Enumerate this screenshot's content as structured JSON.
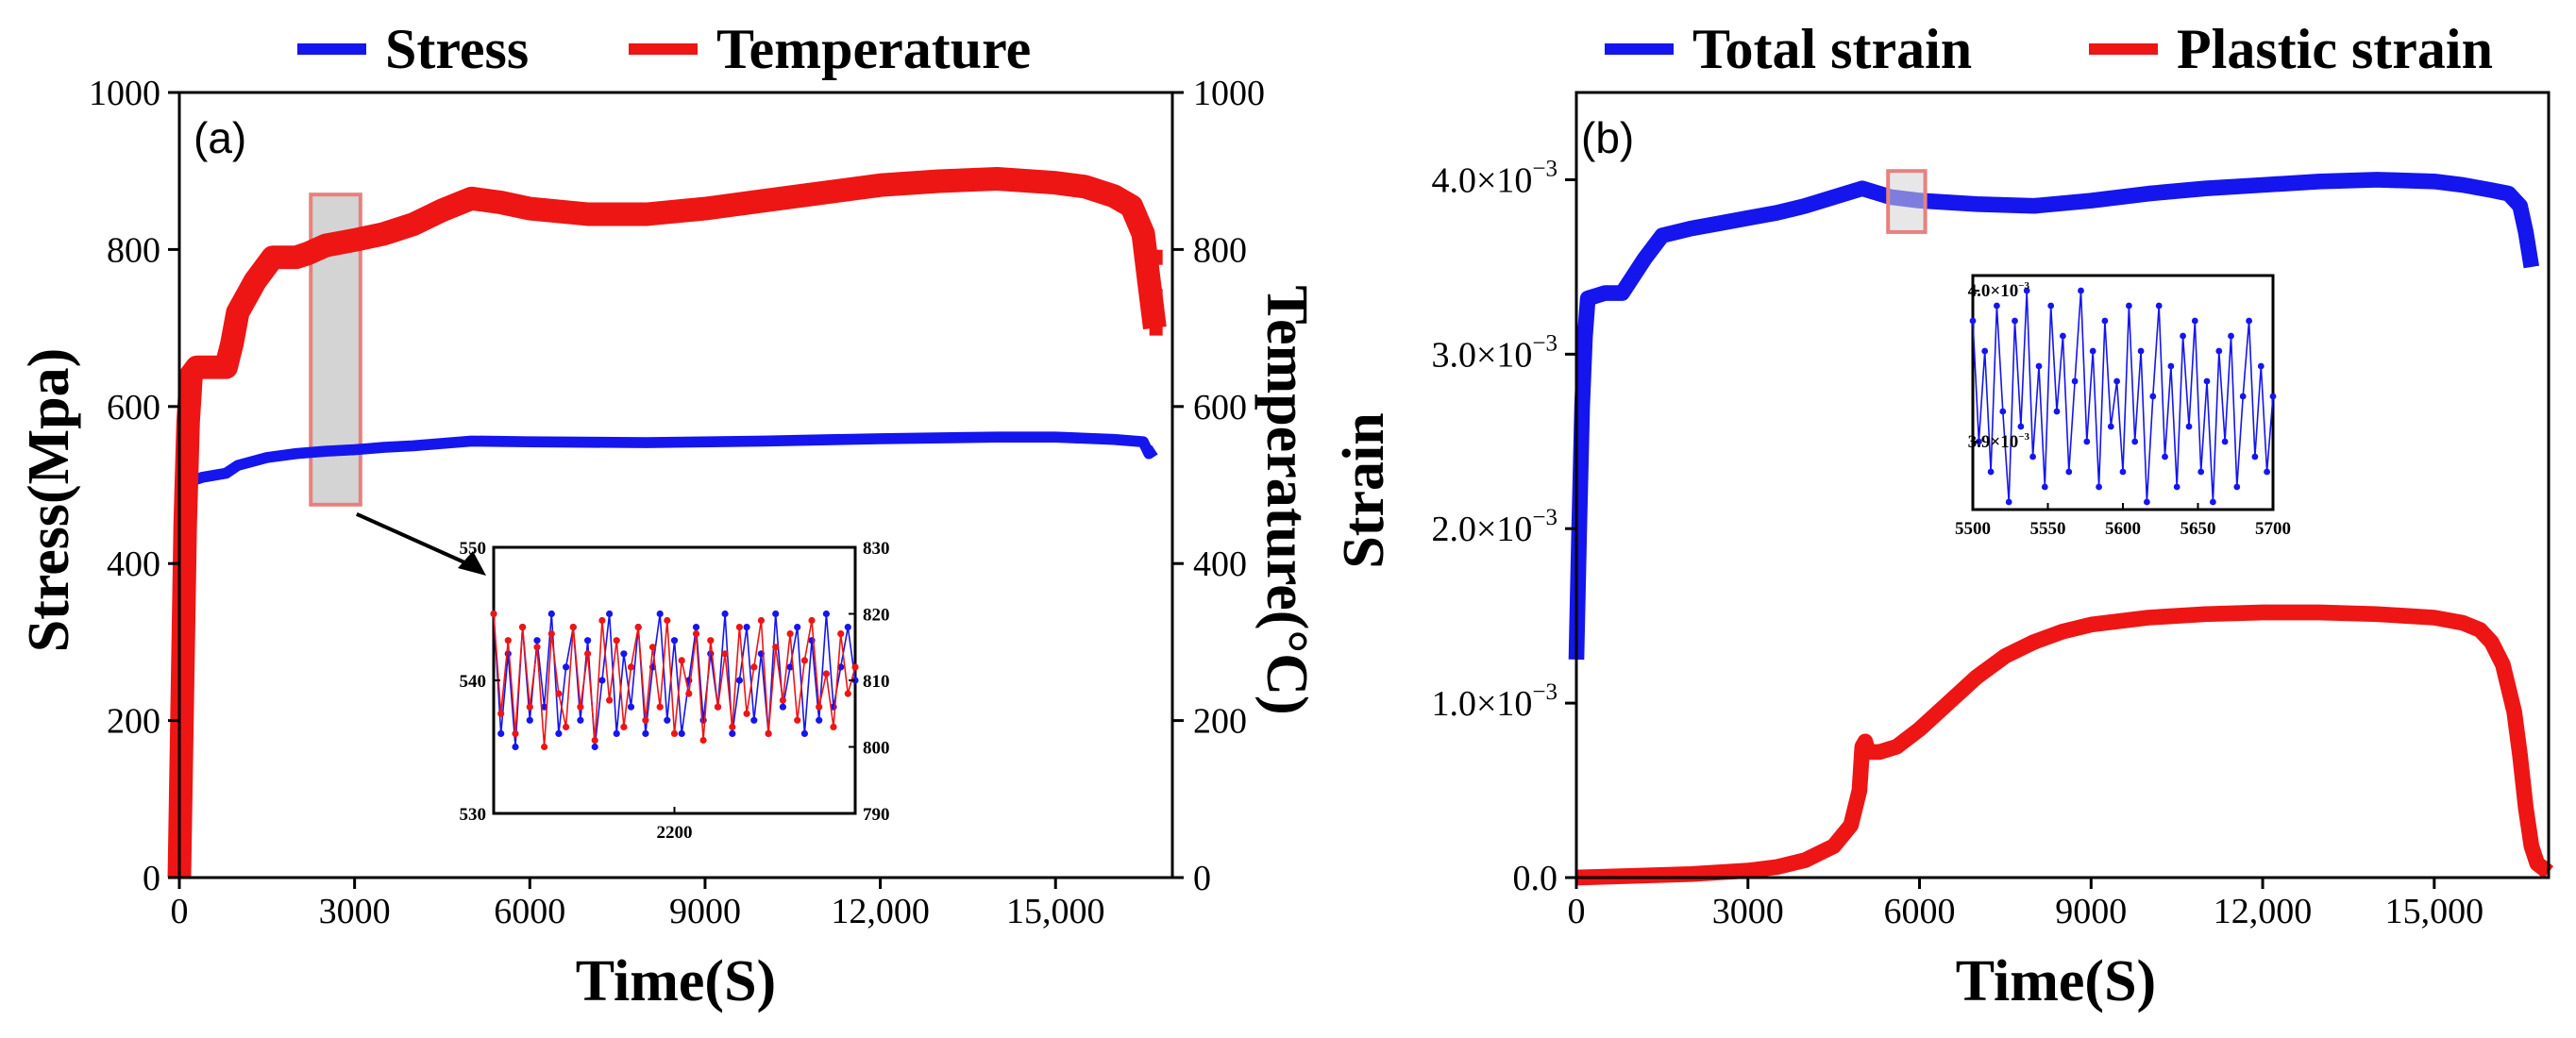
{
  "colors": {
    "stress": "#1515ee",
    "temperature": "#ee1515",
    "total": "#1515ee",
    "plastic": "#ee1515",
    "highlight": "#e88080",
    "highlight_fill": "#d4d4d4",
    "axis": "#000000"
  },
  "chart_data": [
    {
      "id": "a",
      "type": "line",
      "panel_label": "(a)",
      "legend": [
        "Stress",
        "Temperature"
      ],
      "xlabel": "Time(S)",
      "ylabel": "Stress(Mpa)",
      "y2label": "Temperature(°C)",
      "xlim": [
        0,
        17000
      ],
      "ylim": [
        0,
        1000
      ],
      "y2lim": [
        0,
        1000
      ],
      "xticks": [
        0,
        3000,
        6000,
        9000,
        12000,
        15000
      ],
      "xtick_labels": [
        "0",
        "3000",
        "6000",
        "9000",
        "12,000",
        "15,000"
      ],
      "yticks": [
        0,
        200,
        400,
        600,
        800,
        1000
      ],
      "ytick_labels": [
        "0",
        "200",
        "400",
        "600",
        "800",
        "1000"
      ],
      "y2ticks": [
        0,
        200,
        400,
        600,
        800,
        1000
      ],
      "y2tick_labels": [
        "0",
        "200",
        "400",
        "600",
        "800",
        "1000"
      ],
      "highlight": {
        "x": [
          2250,
          3100
        ],
        "y": [
          475,
          870
        ]
      },
      "series": [
        {
          "name": "Stress",
          "axis": "left",
          "band": 14,
          "x": [
            0,
            50,
            100,
            150,
            200,
            400,
            800,
            1000,
            1500,
            2000,
            2500,
            3000,
            3500,
            4000,
            4500,
            5000,
            6000,
            8000,
            10000,
            12000,
            14000,
            15000,
            16000,
            16500,
            16600,
            16700
          ],
          "y": [
            0,
            300,
            430,
            480,
            505,
            510,
            515,
            525,
            535,
            540,
            543,
            545,
            548,
            550,
            553,
            556,
            555,
            554,
            556,
            559,
            561,
            561,
            558,
            555,
            540,
            545
          ]
        },
        {
          "name": "Temperature",
          "axis": "right",
          "band": 30,
          "x": [
            0,
            100,
            150,
            200,
            300,
            500,
            800,
            900,
            1000,
            1300,
            1600,
            1800,
            2000,
            2200,
            2500,
            3000,
            3500,
            4000,
            4500,
            5000,
            5500,
            6000,
            7000,
            8000,
            9000,
            10000,
            11000,
            12000,
            13000,
            14000,
            15000,
            15500,
            16000,
            16300,
            16500,
            16600,
            16700
          ],
          "y": [
            0,
            450,
            580,
            640,
            650,
            650,
            650,
            680,
            720,
            760,
            790,
            790,
            790,
            795,
            805,
            812,
            820,
            832,
            850,
            865,
            860,
            852,
            845,
            845,
            852,
            862,
            872,
            882,
            887,
            890,
            885,
            880,
            868,
            855,
            820,
            760,
            700
          ]
        }
      ],
      "inset": {
        "xlabel_tick": "2200",
        "xlim": [
          2100,
          2300
        ],
        "ylim": [
          530,
          550
        ],
        "y2lim": [
          790,
          830
        ],
        "yticks": [
          530,
          540,
          550
        ],
        "ytick_labels": [
          "530",
          "540",
          "550"
        ],
        "y2ticks": [
          790,
          800,
          810,
          820,
          830
        ],
        "y2tick_labels": [
          "790",
          "800",
          "810",
          "820",
          "830"
        ],
        "xticks": [
          2200
        ],
        "series": [
          {
            "name": "Stress",
            "axis": "left",
            "x": [
              2100,
              2104,
              2108,
              2112,
              2116,
              2120,
              2124,
              2128,
              2132,
              2136,
              2140,
              2144,
              2148,
              2152,
              2156,
              2160,
              2164,
              2168,
              2172,
              2176,
              2180,
              2184,
              2188,
              2192,
              2196,
              2200,
              2204,
              2208,
              2212,
              2216,
              2220,
              2224,
              2228,
              2232,
              2236,
              2240,
              2244,
              2248,
              2252,
              2256,
              2260,
              2264,
              2268,
              2272,
              2276,
              2280,
              2284,
              2288,
              2292,
              2296,
              2300
            ],
            "y": [
              545,
              536,
              542,
              535,
              544,
              537,
              543,
              538,
              545,
              536,
              541,
              544,
              537,
              543,
              535,
              540,
              545,
              536,
              542,
              538,
              544,
              536,
              541,
              545,
              537,
              543,
              536,
              540,
              544,
              537,
              542,
              538,
              545,
              536,
              540,
              544,
              537,
              542,
              536,
              545,
              538,
              541,
              544,
              536,
              543,
              537,
              545,
              538,
              541,
              544,
              540
            ]
          },
          {
            "name": "Temperature",
            "axis": "right",
            "x": [
              2100,
              2104,
              2108,
              2112,
              2116,
              2120,
              2124,
              2128,
              2132,
              2136,
              2140,
              2144,
              2148,
              2152,
              2156,
              2160,
              2164,
              2168,
              2172,
              2176,
              2180,
              2184,
              2188,
              2192,
              2196,
              2200,
              2204,
              2208,
              2212,
              2216,
              2220,
              2224,
              2228,
              2232,
              2236,
              2240,
              2244,
              2248,
              2252,
              2256,
              2260,
              2264,
              2268,
              2272,
              2276,
              2280,
              2284,
              2288,
              2292,
              2296,
              2300
            ],
            "y": [
              820,
              805,
              816,
              802,
              818,
              806,
              815,
              800,
              817,
              808,
              803,
              818,
              806,
              814,
              801,
              819,
              807,
              816,
              803,
              812,
              818,
              804,
              815,
              806,
              819,
              802,
              813,
              808,
              817,
              801,
              816,
              806,
              814,
              803,
              818,
              805,
              812,
              819,
              802,
              815,
              807,
              817,
              804,
              813,
              819,
              806,
              811,
              803,
              817,
              808,
              812
            ]
          }
        ]
      }
    },
    {
      "id": "b",
      "type": "line",
      "panel_label": "(b)",
      "legend": [
        "Total strain",
        "Plastic strain"
      ],
      "xlabel": "Time(S)",
      "ylabel": "Strain",
      "xlim": [
        0,
        17000
      ],
      "ylim": [
        0,
        0.0045
      ],
      "xticks": [
        0,
        3000,
        6000,
        9000,
        12000,
        15000
      ],
      "xtick_labels": [
        "0",
        "3000",
        "6000",
        "9000",
        "12,000",
        "15,000"
      ],
      "yticks": [
        0,
        0.001,
        0.002,
        0.003,
        0.004
      ],
      "ytick_labels": [
        [
          "0.0",
          ""
        ],
        [
          "1.0×10",
          "−3"
        ],
        [
          "2.0×10",
          "−3"
        ],
        [
          "3.0×10",
          "−3"
        ],
        [
          "4.0×10",
          "−3"
        ]
      ],
      "highlight": {
        "x": [
          5450,
          6100
        ],
        "y": [
          0.0037,
          0.00405
        ]
      },
      "series": [
        {
          "name": "Total strain",
          "band": 9e-05,
          "x": [
            0,
            50,
            100,
            150,
            200,
            300,
            500,
            800,
            1000,
            1200,
            1500,
            2000,
            2500,
            3000,
            3500,
            4000,
            4500,
            5000,
            5500,
            6000,
            7000,
            8000,
            9000,
            10000,
            11000,
            12000,
            13000,
            14000,
            15000,
            15500,
            16000,
            16300,
            16500,
            16600,
            16700
          ],
          "y": [
            0.00125,
            0.002,
            0.0027,
            0.0031,
            0.00332,
            0.00333,
            0.00335,
            0.00335,
            0.00345,
            0.00355,
            0.00368,
            0.00372,
            0.00375,
            0.00378,
            0.00381,
            0.00385,
            0.0039,
            0.00395,
            0.0039,
            0.00388,
            0.00386,
            0.00385,
            0.00388,
            0.00392,
            0.00395,
            0.00397,
            0.00399,
            0.004,
            0.00399,
            0.00397,
            0.00394,
            0.00392,
            0.00385,
            0.0037,
            0.0035
          ]
        },
        {
          "name": "Plastic strain",
          "band": 9e-05,
          "x": [
            0,
            1000,
            2000,
            3000,
            3500,
            4000,
            4500,
            4800,
            4950,
            5000,
            5050,
            5100,
            5300,
            5600,
            6000,
            6500,
            7000,
            7500,
            8000,
            8500,
            9000,
            10000,
            11000,
            12000,
            13000,
            14000,
            15000,
            15500,
            15800,
            16000,
            16200,
            16400,
            16500,
            16600,
            16700,
            16800,
            17000
          ],
          "y": [
            0.0,
            1e-05,
            2e-05,
            4e-05,
            6e-05,
            0.0001,
            0.00018,
            0.0003,
            0.0005,
            0.00075,
            0.00078,
            0.00072,
            0.00072,
            0.00075,
            0.00085,
            0.001,
            0.00115,
            0.00127,
            0.00135,
            0.00141,
            0.00145,
            0.00149,
            0.00151,
            0.00152,
            0.00152,
            0.00151,
            0.00149,
            0.00146,
            0.00142,
            0.00135,
            0.00122,
            0.00095,
            0.0007,
            0.0004,
            0.00018,
            8e-05,
            3e-05
          ]
        }
      ],
      "inset": {
        "xlim": [
          5500,
          5700
        ],
        "ylim": [
          0.003855,
          0.00401
        ],
        "xticks": [
          5500,
          5550,
          5600,
          5650,
          5700
        ],
        "xtick_labels": [
          "5500",
          "5550",
          "5600",
          "5650",
          "5700"
        ],
        "yticks": [
          0.0039,
          0.004
        ],
        "ytick_labels": [
          [
            "3.9×10",
            "−3"
          ],
          [
            "4.0×10",
            "−3"
          ]
        ],
        "series": [
          {
            "name": "Total strain",
            "x": [
              5500,
              5504,
              5508,
              5512,
              5516,
              5520,
              5524,
              5528,
              5532,
              5536,
              5540,
              5544,
              5548,
              5552,
              5556,
              5560,
              5564,
              5568,
              5572,
              5576,
              5580,
              5584,
              5588,
              5592,
              5596,
              5600,
              5604,
              5608,
              5612,
              5616,
              5620,
              5624,
              5628,
              5632,
              5636,
              5640,
              5644,
              5648,
              5652,
              5656,
              5660,
              5664,
              5668,
              5672,
              5676,
              5680,
              5684,
              5688,
              5692,
              5696,
              5700
            ],
            "y": [
              0.00398,
              0.0039,
              0.00396,
              0.00388,
              0.00399,
              0.00392,
              0.00386,
              0.00398,
              0.00391,
              0.004,
              0.00389,
              0.00395,
              0.00387,
              0.00399,
              0.00392,
              0.00397,
              0.00388,
              0.00394,
              0.004,
              0.0039,
              0.00396,
              0.00387,
              0.00398,
              0.00391,
              0.00394,
              0.00388,
              0.00399,
              0.0039,
              0.00396,
              0.00386,
              0.00393,
              0.00399,
              0.00389,
              0.00395,
              0.00387,
              0.00397,
              0.00391,
              0.00398,
              0.00388,
              0.00394,
              0.00386,
              0.00396,
              0.0039,
              0.00397,
              0.00387,
              0.00393,
              0.00398,
              0.00389,
              0.00395,
              0.00388,
              0.00393
            ]
          }
        ]
      }
    }
  ]
}
